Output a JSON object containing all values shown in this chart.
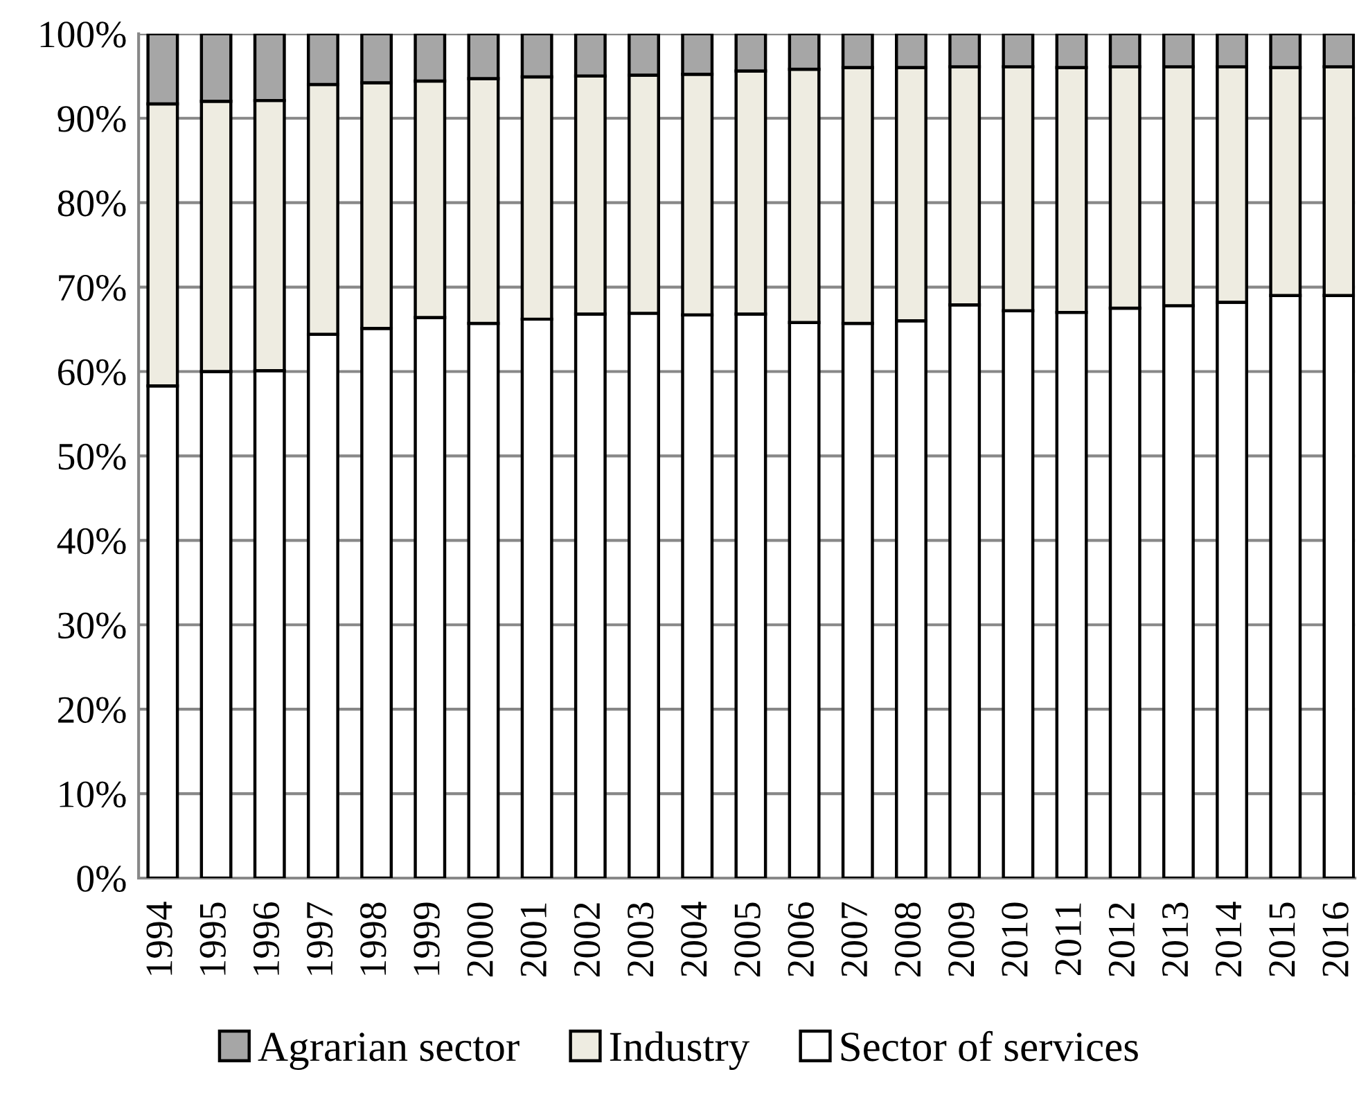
{
  "chart_data": {
    "type": "bar",
    "stacked": true,
    "categories": [
      "1994",
      "1995",
      "1996",
      "1997",
      "1998",
      "1999",
      "2000",
      "2001",
      "2002",
      "2003",
      "2004",
      "2005",
      "2006",
      "2007",
      "2008",
      "2009",
      "2010",
      "2011",
      "2012",
      "2013",
      "2014",
      "2015",
      "2016"
    ],
    "series": [
      {
        "name": "Sector of services",
        "color": "#ffffff",
        "values": [
          58.3,
          60.0,
          60.1,
          64.4,
          65.1,
          66.4,
          65.7,
          66.2,
          66.8,
          66.9,
          66.7,
          66.8,
          65.8,
          65.7,
          66.0,
          67.9,
          67.2,
          67.0,
          67.5,
          67.8,
          68.2,
          69.0,
          69.0
        ]
      },
      {
        "name": "Industry",
        "color": "#eeece1",
        "values": [
          33.4,
          32.0,
          32.0,
          29.6,
          29.1,
          28.0,
          29.0,
          28.7,
          28.2,
          28.2,
          28.5,
          28.8,
          30.0,
          30.3,
          30.0,
          28.2,
          28.9,
          29.0,
          28.6,
          28.3,
          27.9,
          27.0,
          27.1
        ]
      },
      {
        "name": "Agrarian sector",
        "color": "#a6a6a6",
        "values": [
          8.3,
          8.0,
          7.9,
          6.0,
          5.8,
          5.6,
          5.3,
          5.1,
          5.0,
          4.9,
          4.8,
          4.4,
          4.2,
          4.0,
          4.0,
          3.9,
          3.9,
          4.0,
          3.9,
          3.9,
          3.9,
          4.0,
          3.9
        ]
      }
    ],
    "ylim": [
      0,
      100
    ],
    "yticks": [
      {
        "value": 0,
        "label": "0%"
      },
      {
        "value": 10,
        "label": "10%"
      },
      {
        "value": 20,
        "label": "20%"
      },
      {
        "value": 30,
        "label": "30%"
      },
      {
        "value": 40,
        "label": "40%"
      },
      {
        "value": 50,
        "label": "50%"
      },
      {
        "value": 60,
        "label": "60%"
      },
      {
        "value": 70,
        "label": "70%"
      },
      {
        "value": 80,
        "label": "80%"
      },
      {
        "value": 90,
        "label": "90%"
      },
      {
        "value": 100,
        "label": "100%"
      }
    ],
    "grid": "y",
    "legend": "bottom"
  }
}
